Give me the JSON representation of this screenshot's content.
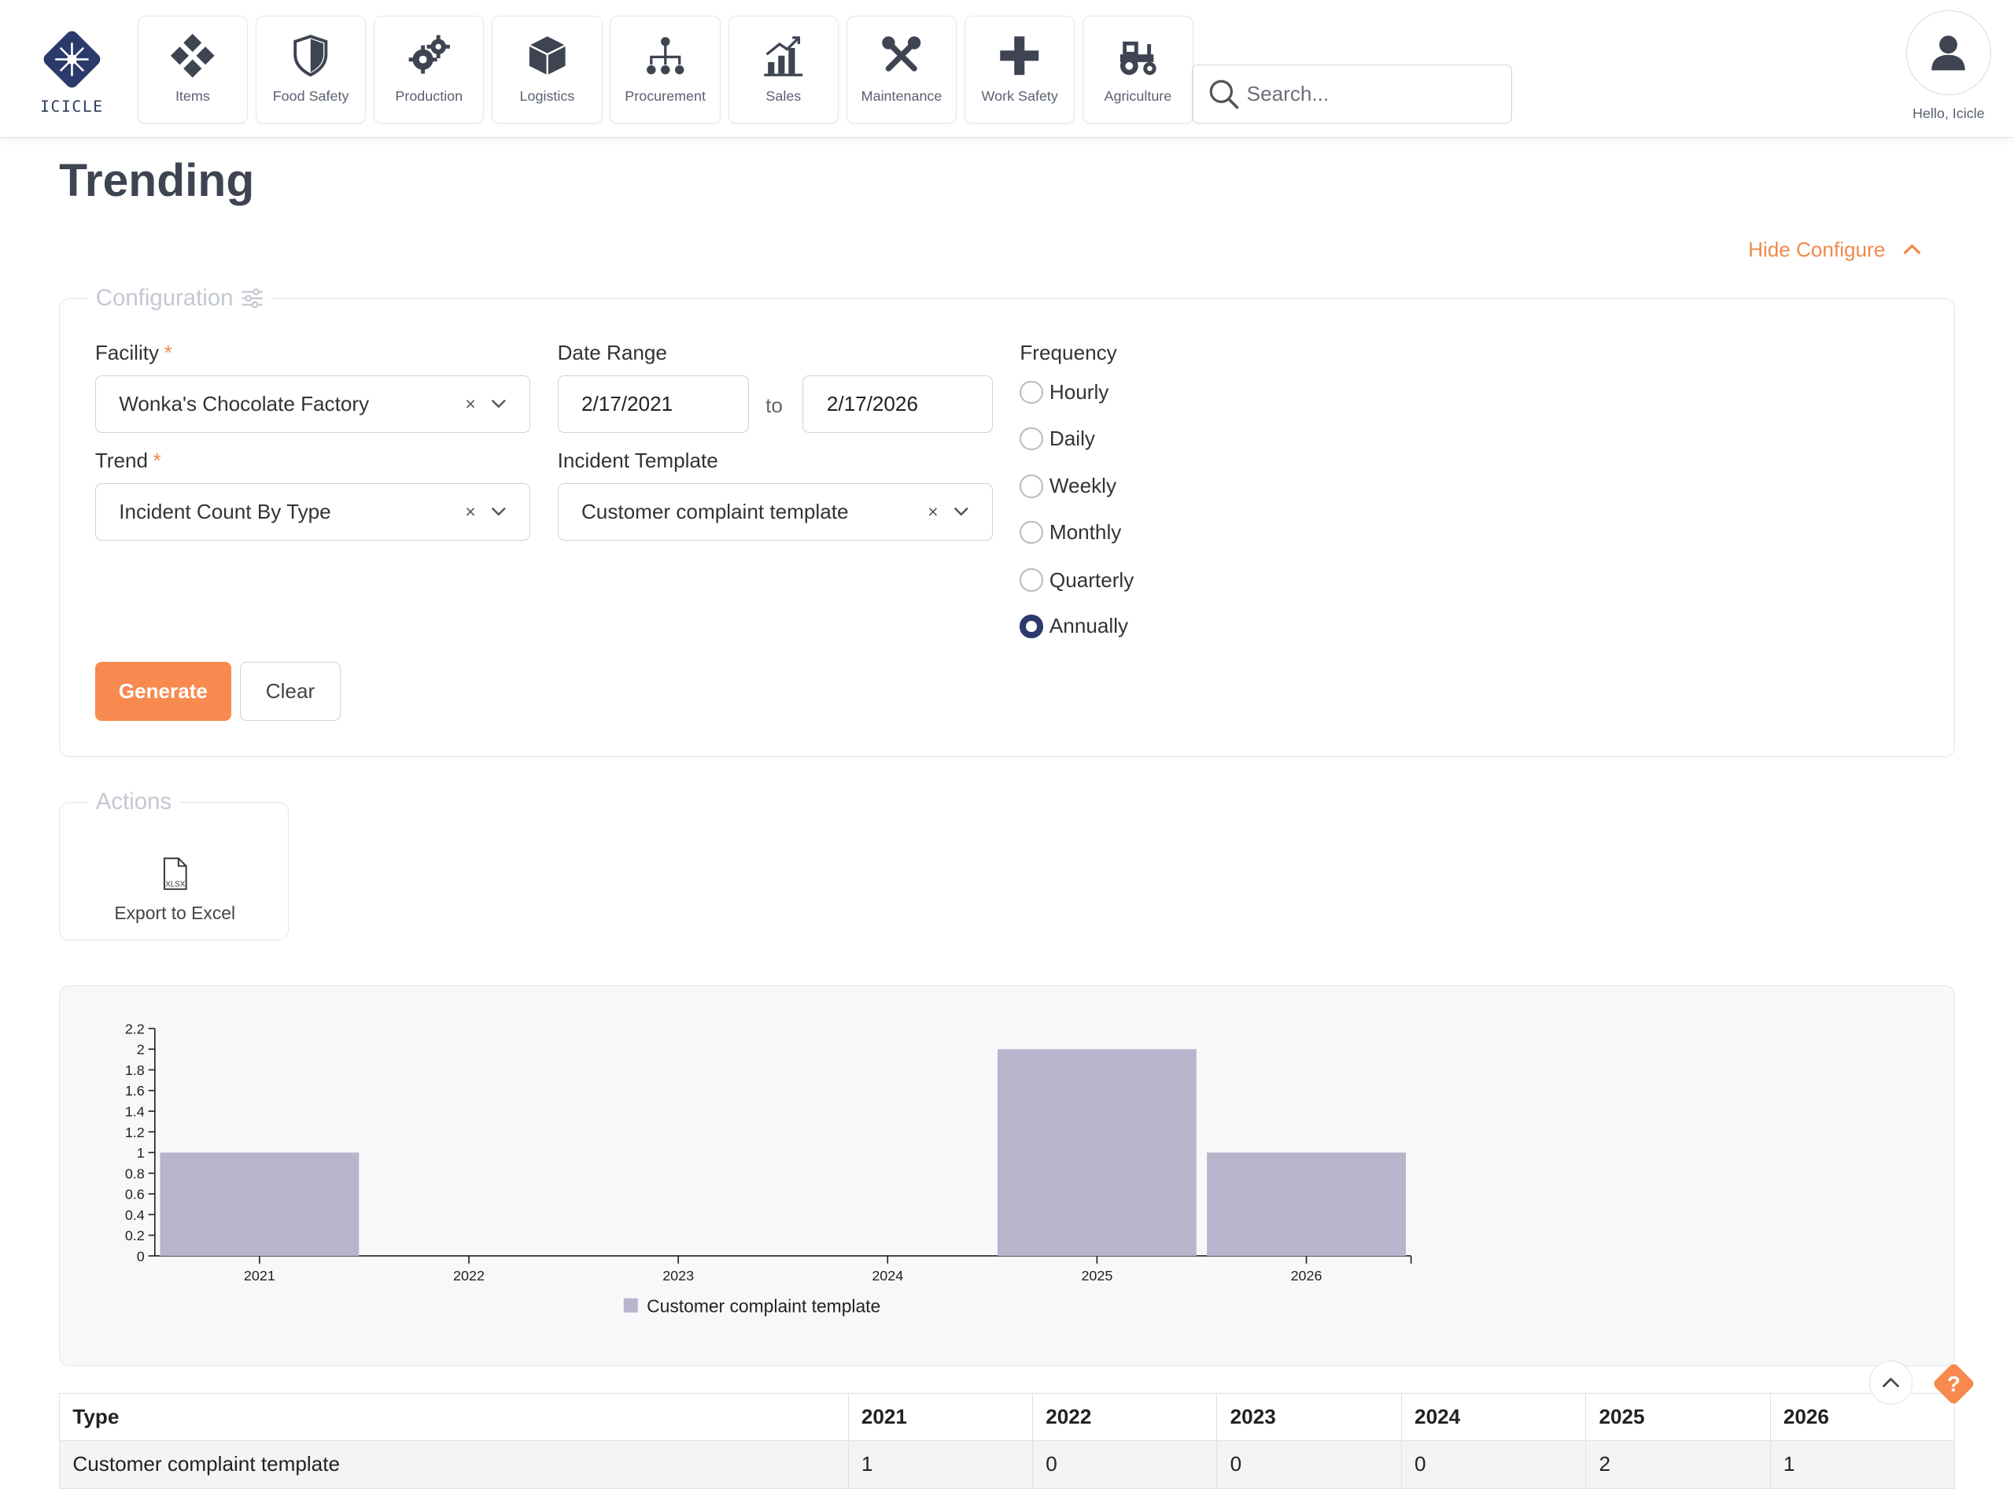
{
  "logo": {
    "text": "ICICLE"
  },
  "nav": [
    {
      "label": "Items",
      "icon": "items-icon"
    },
    {
      "label": "Food Safety",
      "icon": "shield-icon"
    },
    {
      "label": "Production",
      "icon": "gears-icon"
    },
    {
      "label": "Logistics",
      "icon": "box-icon"
    },
    {
      "label": "Procurement",
      "icon": "hierarchy-icon"
    },
    {
      "label": "Sales",
      "icon": "chart-up-icon"
    },
    {
      "label": "Maintenance",
      "icon": "tools-icon"
    },
    {
      "label": "Work Safety",
      "icon": "plus-icon"
    },
    {
      "label": "Agriculture",
      "icon": "tractor-icon"
    }
  ],
  "search": {
    "placeholder": "Search..."
  },
  "user": {
    "greeting": "Hello, Icicle"
  },
  "page": {
    "title": "Trending",
    "hide_configure": "Hide Configure"
  },
  "config": {
    "legend": "Configuration",
    "facility_label": "Facility",
    "facility_value": "Wonka's Chocolate Factory",
    "trend_label": "Trend",
    "trend_value": "Incident Count By Type",
    "date_range_label": "Date Range",
    "date_from": "2/17/2021",
    "date_to_sep": "to",
    "date_to": "2/17/2026",
    "incident_template_label": "Incident Template",
    "incident_template_value": "Customer complaint template",
    "frequency_label": "Frequency",
    "frequency_options": [
      "Hourly",
      "Daily",
      "Weekly",
      "Monthly",
      "Quarterly",
      "Annually"
    ],
    "frequency_selected": "Annually",
    "generate_label": "Generate",
    "clear_label": "Clear",
    "clear_symbol": "×",
    "required_mark": "*"
  },
  "actions": {
    "legend": "Actions",
    "export_label": "Export to Excel",
    "file_type": "XLSX"
  },
  "chart_data": {
    "type": "bar",
    "categories": [
      "2021",
      "2022",
      "2023",
      "2024",
      "2025",
      "2026"
    ],
    "series": [
      {
        "name": "Customer complaint template",
        "values": [
          1,
          0,
          0,
          0,
          2,
          1
        ],
        "color": "#b7b5cc"
      }
    ],
    "ylim": [
      0,
      2.2
    ],
    "yticks": [
      "0",
      "0.2",
      "0.4",
      "0.6",
      "0.8",
      "1",
      "1.2",
      "1.4",
      "1.6",
      "1.8",
      "2",
      "2.2"
    ],
    "legend_position": "bottom"
  },
  "table": {
    "headers": [
      "Type",
      "2021",
      "2022",
      "2023",
      "2024",
      "2025",
      "2026"
    ],
    "rows": [
      [
        "Customer complaint template",
        "1",
        "0",
        "0",
        "0",
        "2",
        "1"
      ]
    ]
  },
  "help": {
    "symbol": "?"
  },
  "colors": {
    "accent": "#f88a4f",
    "brand": "#2b3a6b",
    "bar": "#b7b5cc"
  }
}
